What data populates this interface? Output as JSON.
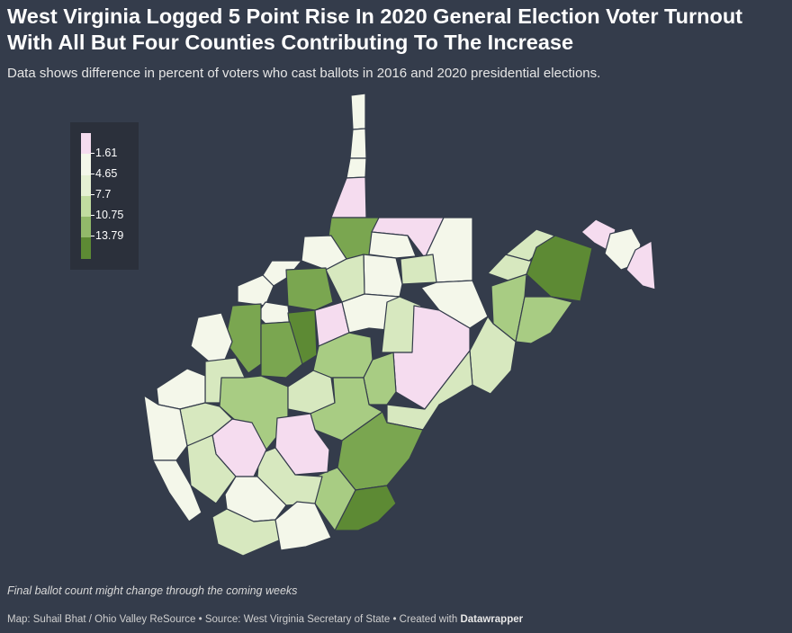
{
  "header": {
    "title": "West Virginia Logged 5 Point Rise In 2020 General Election Voter Turnout With All But Four Counties Contributing To The Increase",
    "subtitle": "Data shows difference in percent of voters who cast ballots in 2016 and 2020 presidential elections."
  },
  "legend": {
    "labels": [
      "1.61",
      "4.65",
      "7.7",
      "10.75",
      "13.79"
    ],
    "colors": [
      "#f5dcef",
      "#f4f7ea",
      "#d7e8bf",
      "#a8cc83",
      "#7aa650",
      "#5d8a34"
    ]
  },
  "map": {
    "state": "West Virginia",
    "counties_with_decrease": 4
  },
  "note": "Final ballot count might change through the coming weeks",
  "footer": {
    "credit": "Map: Suhail Bhat / Ohio Valley ReSource • Source: West Virginia Secretary of State • Created with ",
    "tool": "Datawrapper"
  }
}
